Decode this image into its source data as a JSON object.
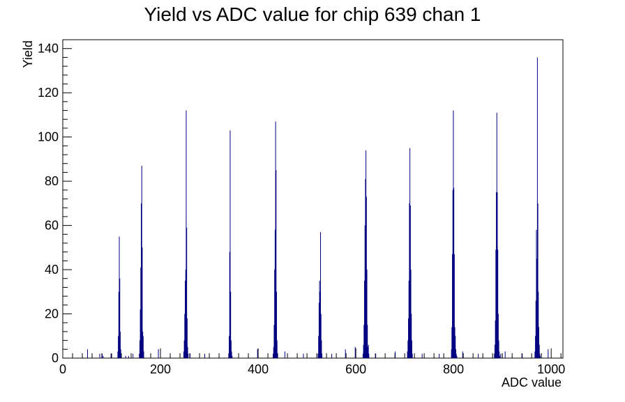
{
  "chart_data": {
    "type": "bar",
    "title": "Yield vs ADC value for chip 639 chan 1",
    "xlabel": "ADC value",
    "ylabel": "Yield",
    "xlim": [
      0,
      1024
    ],
    "ylim": [
      0,
      144
    ],
    "x_ticks": [
      0,
      200,
      400,
      600,
      800,
      1000
    ],
    "y_ticks": [
      0,
      20,
      40,
      60,
      80,
      100,
      120,
      140
    ],
    "bar_color": "#000080",
    "grid": false,
    "legend": "none",
    "peaks": [
      {
        "x": [
          112,
          113,
          114,
          115,
          116,
          117,
          118,
          119
        ],
        "values": [
          3,
          10,
          30,
          55,
          36,
          12,
          4,
          1
        ]
      },
      {
        "x": [
          156,
          157,
          158,
          159,
          160,
          161,
          162,
          163,
          164,
          165
        ],
        "values": [
          2,
          8,
          22,
          41,
          70,
          87,
          50,
          12,
          10,
          3
        ]
      },
      {
        "x": [
          247,
          248,
          249,
          250,
          251,
          252,
          253,
          254,
          255,
          256
        ],
        "values": [
          3,
          8,
          20,
          35,
          40,
          112,
          59,
          18,
          5,
          2
        ]
      },
      {
        "x": [
          339,
          340,
          341,
          342,
          343,
          344,
          345,
          346
        ],
        "values": [
          2,
          10,
          48,
          103,
          30,
          8,
          3,
          1
        ]
      },
      {
        "x": [
          430,
          431,
          432,
          433,
          434,
          435,
          436,
          437,
          438,
          439
        ],
        "values": [
          2,
          5,
          15,
          40,
          58,
          107,
          85,
          30,
          8,
          2
        ]
      },
      {
        "x": [
          522,
          523,
          524,
          525,
          526,
          527,
          528,
          529,
          530
        ],
        "values": [
          2,
          10,
          25,
          35,
          30,
          57,
          20,
          8,
          2
        ]
      },
      {
        "x": [
          614,
          615,
          616,
          617,
          618,
          619,
          620,
          621,
          622,
          623,
          624,
          625,
          626
        ],
        "values": [
          2,
          6,
          15,
          35,
          60,
          81,
          94,
          73,
          40,
          15,
          5,
          6,
          2
        ]
      },
      {
        "x": [
          705,
          706,
          707,
          708,
          709,
          710,
          711,
          712,
          713,
          714,
          715
        ],
        "values": [
          3,
          8,
          18,
          35,
          70,
          95,
          69,
          40,
          20,
          8,
          2
        ]
      },
      {
        "x": [
          795,
          796,
          797,
          798,
          799,
          800,
          801,
          802,
          803,
          804,
          805,
          806
        ],
        "values": [
          4,
          14,
          47,
          76,
          112,
          77,
          47,
          14,
          10,
          4,
          2,
          1
        ]
      },
      {
        "x": [
          883,
          884,
          885,
          886,
          887,
          888,
          889,
          890,
          891,
          892,
          893,
          894
        ],
        "values": [
          2,
          6,
          17,
          49,
          75,
          111,
          75,
          49,
          20,
          8,
          3,
          1
        ]
      },
      {
        "x": [
          966,
          967,
          968,
          969,
          970,
          971,
          972,
          973,
          974,
          975,
          976,
          977
        ],
        "values": [
          3,
          10,
          26,
          58,
          45,
          136,
          70,
          30,
          14,
          6,
          2,
          1
        ]
      }
    ],
    "isolated": [
      {
        "x": 50,
        "value": 4
      },
      {
        "x": 75,
        "value": 2
      },
      {
        "x": 80,
        "value": 2
      },
      {
        "x": 82,
        "value": 1
      },
      {
        "x": 98,
        "value": 2
      },
      {
        "x": 128,
        "value": 1
      },
      {
        "x": 134,
        "value": 1
      },
      {
        "x": 143,
        "value": 2
      },
      {
        "x": 195,
        "value": 4
      },
      {
        "x": 260,
        "value": 2
      },
      {
        "x": 290,
        "value": 2
      },
      {
        "x": 398,
        "value": 4
      },
      {
        "x": 454,
        "value": 3
      },
      {
        "x": 492,
        "value": 2
      },
      {
        "x": 550,
        "value": 2
      },
      {
        "x": 578,
        "value": 4
      },
      {
        "x": 598,
        "value": 5
      },
      {
        "x": 640,
        "value": 2
      },
      {
        "x": 680,
        "value": 3
      },
      {
        "x": 735,
        "value": 2
      },
      {
        "x": 770,
        "value": 2
      },
      {
        "x": 818,
        "value": 3
      },
      {
        "x": 850,
        "value": 2
      },
      {
        "x": 896,
        "value": 2
      },
      {
        "x": 905,
        "value": 3
      },
      {
        "x": 940,
        "value": 2
      },
      {
        "x": 993,
        "value": 4
      }
    ]
  }
}
